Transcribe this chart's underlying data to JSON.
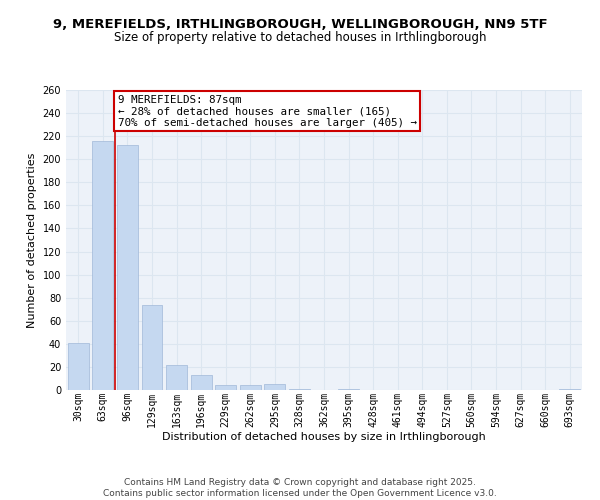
{
  "title_line1": "9, MEREFIELDS, IRTHLINGBOROUGH, WELLINGBOROUGH, NN9 5TF",
  "title_line2": "Size of property relative to detached houses in Irthlingborough",
  "xlabel": "Distribution of detached houses by size in Irthlingborough",
  "ylabel": "Number of detached properties",
  "categories": [
    "30sqm",
    "63sqm",
    "96sqm",
    "129sqm",
    "163sqm",
    "196sqm",
    "229sqm",
    "262sqm",
    "295sqm",
    "328sqm",
    "362sqm",
    "395sqm",
    "428sqm",
    "461sqm",
    "494sqm",
    "527sqm",
    "560sqm",
    "594sqm",
    "627sqm",
    "660sqm",
    "693sqm"
  ],
  "values": [
    41,
    216,
    212,
    74,
    22,
    13,
    4,
    4,
    5,
    1,
    0,
    1,
    0,
    0,
    0,
    0,
    0,
    0,
    0,
    0,
    1
  ],
  "bar_color": "#c5d8f0",
  "bar_edge_color": "#a0b8d8",
  "red_line_x": 1.5,
  "annotation_text_line1": "9 MEREFIELDS: 87sqm",
  "annotation_text_line2": "← 28% of detached houses are smaller (165)",
  "annotation_text_line3": "70% of semi-detached houses are larger (405) →",
  "annotation_box_color": "#ffffff",
  "annotation_border_color": "#cc0000",
  "ylim": [
    0,
    260
  ],
  "yticks": [
    0,
    20,
    40,
    60,
    80,
    100,
    120,
    140,
    160,
    180,
    200,
    220,
    240,
    260
  ],
  "grid_color": "#dce6f0",
  "background_color": "#edf2f9",
  "footer_line1": "Contains HM Land Registry data © Crown copyright and database right 2025.",
  "footer_line2": "Contains public sector information licensed under the Open Government Licence v3.0.",
  "title_fontsize": 9.5,
  "subtitle_fontsize": 8.5,
  "axis_label_fontsize": 8,
  "tick_fontsize": 7,
  "annotation_fontsize": 7.8,
  "footer_fontsize": 6.5
}
